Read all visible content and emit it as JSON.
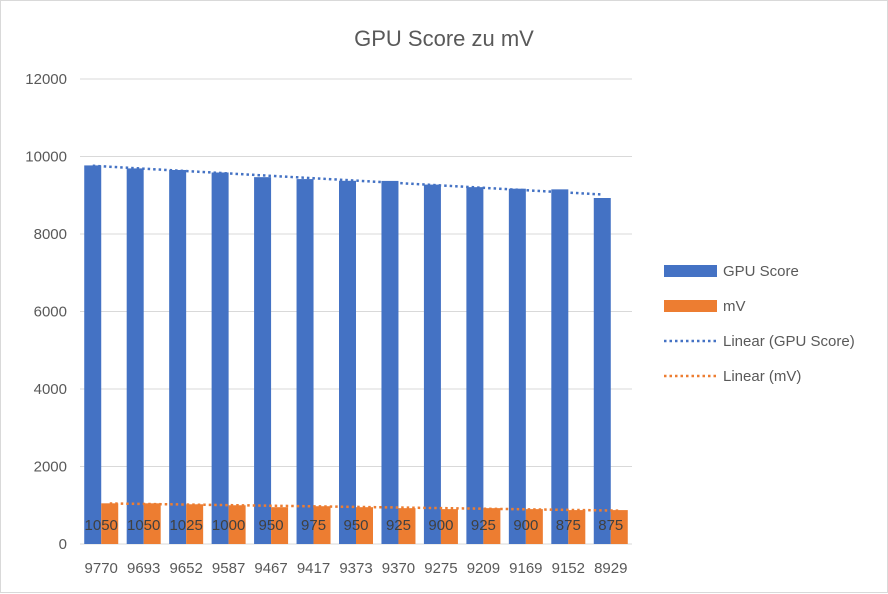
{
  "chart_data": {
    "type": "bar",
    "title": "GPU Score zu mV",
    "categories": [
      "9770",
      "9693",
      "9652",
      "9587",
      "9467",
      "9417",
      "9373",
      "9370",
      "9275",
      "9209",
      "9169",
      "9152",
      "8929"
    ],
    "series": [
      {
        "name": "GPU Score",
        "color": "#4472c4",
        "values": [
          9770,
          9693,
          9652,
          9587,
          9467,
          9417,
          9373,
          9370,
          9275,
          9209,
          9169,
          9152,
          8929
        ]
      },
      {
        "name": "mV",
        "color": "#ed7d31",
        "values": [
          1050,
          1050,
          1025,
          1000,
          950,
          975,
          950,
          925,
          900,
          925,
          900,
          875,
          875
        ]
      }
    ],
    "trendlines": [
      {
        "name": "Linear (GPU Score)",
        "series": "GPU Score",
        "type": "linear",
        "color": "#4472c4",
        "style": "dotted"
      },
      {
        "name": "Linear (mV)",
        "series": "mV",
        "type": "linear",
        "color": "#ed7d31",
        "style": "dotted"
      }
    ],
    "data_labels_series": "mV",
    "ylim": [
      0,
      12000
    ],
    "yticks": [
      "0",
      "2000",
      "4000",
      "6000",
      "8000",
      "10000",
      "12000"
    ],
    "grid": true,
    "legend_position": "right",
    "xlabel": "",
    "ylabel": ""
  }
}
